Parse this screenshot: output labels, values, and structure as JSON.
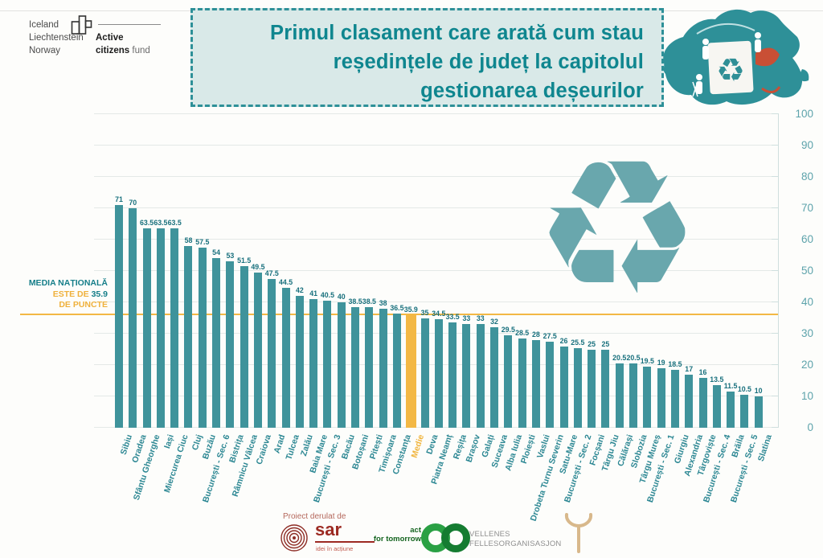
{
  "branding": {
    "countries": [
      "Iceland",
      "Liechtenstein",
      "Norway"
    ],
    "fund_word1": "Active",
    "fund_word2": "citizens",
    "fund_word3": "fund"
  },
  "header": {
    "title_lines": [
      "Primul clasament care arată cum stau",
      "reședințele de județ la capitolul",
      "gestionarea deșeurilor"
    ]
  },
  "national_average": {
    "line1": "MEDIA NAȚIONALĂ",
    "line2_prefix": "ESTE DE ",
    "line2_value": "35.9",
    "line3": "DE PUNCTE",
    "value": 35.9
  },
  "chart_data": {
    "type": "bar",
    "title": "Primul clasament care arată cum stau reședințele de județ la capitolul gestionarea deșeurilor",
    "categories": [
      "Sibiu",
      "Oradea",
      "Sfântu Gheorghe",
      "Iași",
      "Miercurea Ciuc",
      "Cluj",
      "Buzău",
      "București - Sec. 6",
      "Bistrița",
      "Râmnicu Vâlcea",
      "Craiova",
      "Arad",
      "Tulcea",
      "Zalău",
      "Baia Mare",
      "București - Sec. 3",
      "Bacău",
      "Botoșani",
      "Pitești",
      "Timișoara",
      "Constanța",
      "Medie",
      "Deva",
      "Piatra Neamț",
      "Reșița",
      "Brașov",
      "Galați",
      "Suceava",
      "Alba Iulia",
      "Ploiești",
      "Vaslui",
      "Drobeta Turnu Severin",
      "Satu-Mare",
      "București - Sec. 2",
      "Focșani",
      "Târgu Jiu",
      "Călărași",
      "Slobozia",
      "Târgu Mureș",
      "București - Sec. 1",
      "Giurgiu",
      "Alexandria",
      "Târgoviște",
      "București - Sec. 4",
      "Brăila",
      "București - Sec. 5",
      "Slatina"
    ],
    "values": [
      71,
      70,
      63.5,
      63.5,
      63.5,
      58,
      57.5,
      54,
      53,
      51.5,
      49.5,
      47.5,
      44.5,
      42,
      41,
      40.5,
      40,
      38.5,
      38.5,
      38,
      36.5,
      35.9,
      35,
      34.5,
      33.5,
      33,
      33,
      32,
      29.5,
      28.5,
      28,
      27.5,
      26,
      25.5,
      25,
      25,
      20.5,
      20.5,
      19.5,
      19,
      18.5,
      17,
      16,
      13.5,
      11.5,
      10.5,
      10
    ],
    "highlight_category": "Medie",
    "average_line": 35.9,
    "ylim": [
      0,
      100
    ],
    "y_ticks": [
      0,
      10,
      20,
      30,
      40,
      50,
      60,
      70,
      80,
      90,
      100
    ],
    "grid": true,
    "legend": "none",
    "bar_color": "#3f939b",
    "highlight_color": "#f3b845",
    "xlabel": "",
    "ylabel": ""
  },
  "footer": {
    "project_by": "Proiect derulat de",
    "sar_name": "sar",
    "sar_tagline": "idei în acțiune",
    "aft_line1": "act",
    "aft_line2": "for tomorrow",
    "vellenes_line1": "VELLENES",
    "vellenes_line2": "FELLESORGANISASJON"
  },
  "colors": {
    "teal_bar": "#3f939b",
    "teal_text": "#0f868f",
    "gold": "#f3b845",
    "title_bg": "#d9e9e8",
    "map_teal": "#2e9098"
  },
  "icons": {
    "recycle_watermark": "recycle-symbol",
    "romania_map": "romania-map-recycling-illustration"
  }
}
